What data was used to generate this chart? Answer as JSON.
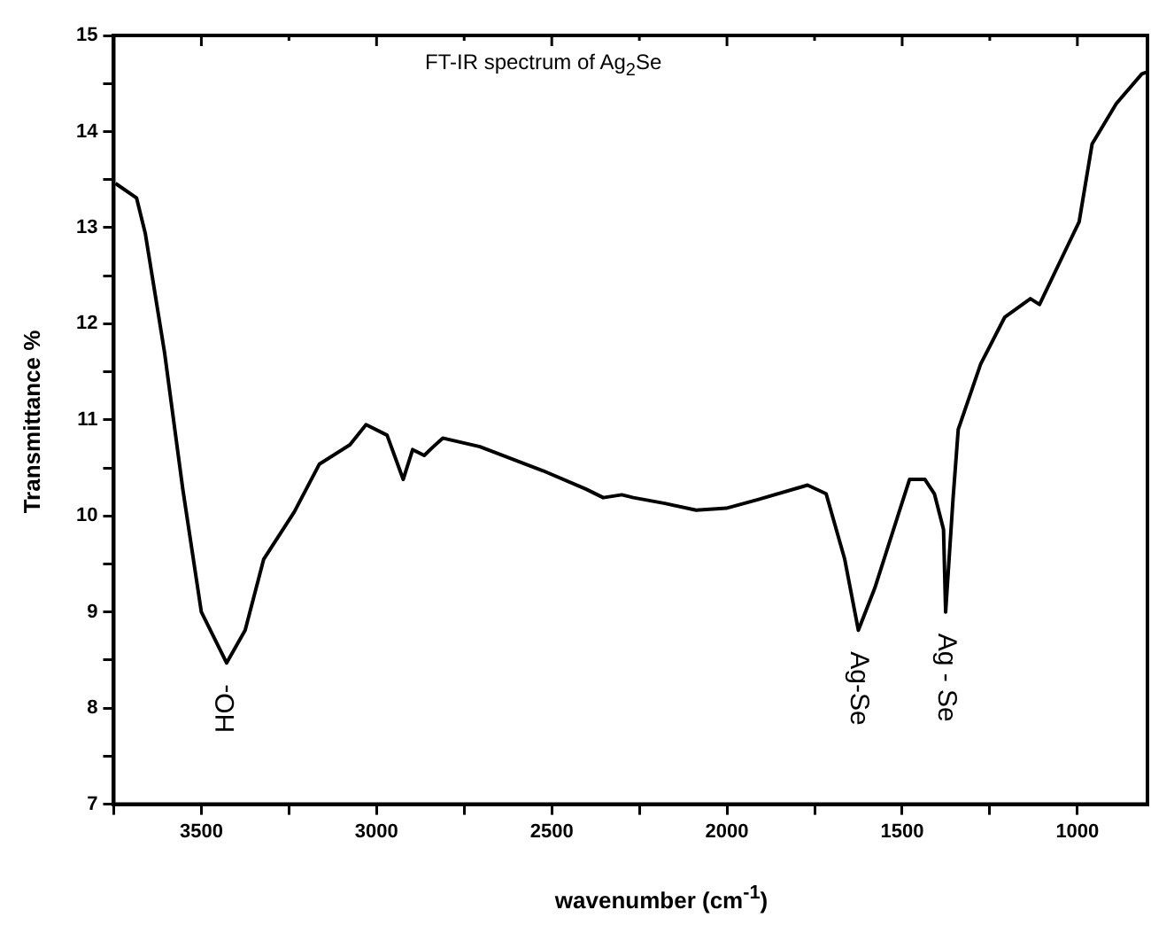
{
  "chart_data": {
    "type": "line",
    "title": "FT-IR spectrum of Ag$_{2}$Se",
    "xlabel": "wavenumber (cm$^{-1}$)",
    "ylabel": "Transmittance %",
    "xlim": [
      3750,
      800
    ],
    "ylim": [
      7,
      15
    ],
    "xticks": [
      {
        "value": 3750,
        "label": null
      },
      3500,
      {
        "value": 3250,
        "label": null
      },
      3000,
      {
        "value": 2750,
        "label": null
      },
      2500,
      {
        "value": 2250,
        "label": null
      },
      2000,
      {
        "value": 1750,
        "label": null
      },
      1500,
      {
        "value": 1250,
        "label": null
      },
      1000
    ],
    "yticks": [
      7,
      {
        "value": 7.5,
        "label": null
      },
      8,
      {
        "value": 8.5,
        "label": null
      },
      9,
      {
        "value": 9.5,
        "label": null
      },
      10,
      {
        "value": 10.5,
        "label": null
      },
      11,
      {
        "value": 11.5,
        "label": null
      },
      12,
      {
        "value": 12.5,
        "label": null
      },
      13,
      {
        "value": 13.5,
        "label": null
      },
      14,
      {
        "value": 14.5,
        "label": null
      },
      15
    ],
    "grid": false,
    "legend": false,
    "line_style": "solid",
    "series": [
      {
        "color": "#000000",
        "x": [
          3745,
          3685,
          3660,
          3605,
          3553,
          3500,
          3428,
          3375,
          3322,
          3235,
          3163,
          3076,
          3030,
          2970,
          2924,
          2897,
          2864,
          2838,
          2811,
          2705,
          2525,
          2403,
          2353,
          2300,
          2267,
          2177,
          2088,
          2002,
          1912,
          1770,
          1717,
          1664,
          1625,
          1578,
          1479,
          1435,
          1408,
          1382,
          1376,
          1355,
          1340,
          1276,
          1207,
          1134,
          1108,
          1028,
          995,
          958,
          889,
          816,
          800
        ],
        "values": [
          13.46,
          13.31,
          12.94,
          11.7,
          10.28,
          9.0,
          8.47,
          8.81,
          9.55,
          10.04,
          10.54,
          10.74,
          10.95,
          10.84,
          10.38,
          10.69,
          10.63,
          10.72,
          10.81,
          10.72,
          10.47,
          10.28,
          10.19,
          10.22,
          10.19,
          10.13,
          10.06,
          10.08,
          10.17,
          10.32,
          10.23,
          9.55,
          8.81,
          9.25,
          10.38,
          10.38,
          10.23,
          9.86,
          9.0,
          10.17,
          10.9,
          11.58,
          12.07,
          12.26,
          12.2,
          12.81,
          13.06,
          13.87,
          14.29,
          14.6,
          14.62
        ]
      }
    ],
    "annotations": [
      {
        "text": "HO-",
        "x": 3428,
        "y": 8.47
      },
      {
        "text": "Ag-Se",
        "x": 1625,
        "y": 8.81
      },
      {
        "text": "Ag - Se",
        "x": 1376,
        "y": 9.0
      }
    ]
  }
}
